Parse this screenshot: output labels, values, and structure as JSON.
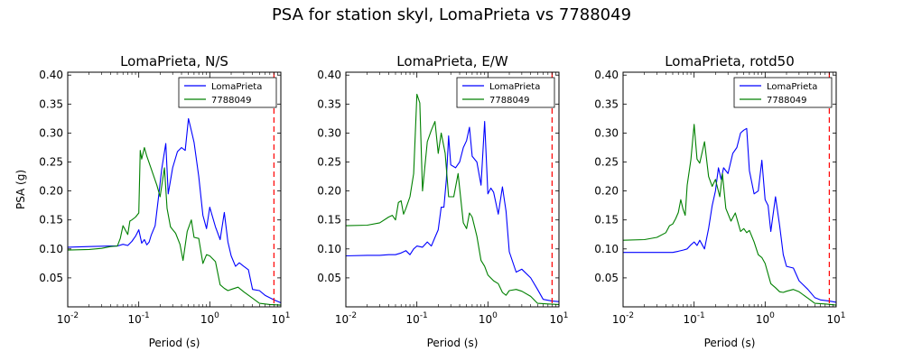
{
  "figure": {
    "suptitle": "PSA for station skyl, LomaPrieta vs 7788049"
  },
  "chart_data": [
    {
      "type": "line",
      "title": "LomaPrieta, N/S",
      "xlabel": "Period (s)",
      "ylabel": "PSA (g)",
      "xscale": "log",
      "xlim": [
        0.01,
        10
      ],
      "ylim": [
        0.0,
        0.405
      ],
      "xticks": [
        {
          "value": 0.01,
          "base": "10",
          "exp": "-2"
        },
        {
          "value": 0.1,
          "base": "10",
          "exp": "-1"
        },
        {
          "value": 1,
          "base": "10",
          "exp": "0"
        },
        {
          "value": 10,
          "base": "10",
          "exp": "1"
        }
      ],
      "yticks": [
        0.05,
        0.1,
        0.15,
        0.2,
        0.25,
        0.3,
        0.35,
        0.4
      ],
      "ytick_labels": [
        "0.05",
        "0.10",
        "0.15",
        "0.20",
        "0.25",
        "0.30",
        "0.35",
        "0.40"
      ],
      "legend_position": "top-right",
      "vline": {
        "x": 8,
        "color": "#ff0000",
        "style": "dashed"
      },
      "series": [
        {
          "name": "LomaPrieta",
          "color": "#0000ff",
          "x": [
            0.01,
            0.02,
            0.04,
            0.05,
            0.06,
            0.07,
            0.08,
            0.09,
            0.1,
            0.11,
            0.12,
            0.13,
            0.14,
            0.15,
            0.17,
            0.19,
            0.21,
            0.24,
            0.26,
            0.3,
            0.35,
            0.4,
            0.45,
            0.5,
            0.55,
            0.6,
            0.7,
            0.8,
            0.9,
            1.0,
            1.2,
            1.4,
            1.6,
            1.8,
            2.0,
            2.3,
            2.6,
            3.0,
            3.5,
            4.0,
            5.0,
            6.0,
            8.0,
            10.0
          ],
          "y": [
            0.103,
            0.104,
            0.105,
            0.105,
            0.108,
            0.106,
            0.113,
            0.122,
            0.133,
            0.11,
            0.116,
            0.107,
            0.112,
            0.124,
            0.14,
            0.19,
            0.237,
            0.282,
            0.195,
            0.24,
            0.268,
            0.275,
            0.27,
            0.325,
            0.304,
            0.284,
            0.225,
            0.158,
            0.135,
            0.172,
            0.138,
            0.116,
            0.163,
            0.112,
            0.088,
            0.07,
            0.076,
            0.07,
            0.064,
            0.03,
            0.028,
            0.02,
            0.012,
            0.007
          ]
        },
        {
          "name": "7788049",
          "color": "#008000",
          "x": [
            0.01,
            0.02,
            0.03,
            0.04,
            0.05,
            0.055,
            0.06,
            0.07,
            0.075,
            0.08,
            0.09,
            0.1,
            0.105,
            0.11,
            0.12,
            0.13,
            0.15,
            0.18,
            0.2,
            0.23,
            0.25,
            0.28,
            0.33,
            0.38,
            0.42,
            0.48,
            0.55,
            0.6,
            0.7,
            0.8,
            0.9,
            1.0,
            1.2,
            1.4,
            1.6,
            1.8,
            2.0,
            2.5,
            3.0,
            4.0,
            5.0,
            7.0,
            10.0
          ],
          "y": [
            0.098,
            0.099,
            0.101,
            0.104,
            0.105,
            0.118,
            0.14,
            0.125,
            0.148,
            0.15,
            0.155,
            0.162,
            0.27,
            0.255,
            0.275,
            0.26,
            0.238,
            0.21,
            0.19,
            0.24,
            0.17,
            0.138,
            0.127,
            0.108,
            0.08,
            0.13,
            0.15,
            0.12,
            0.118,
            0.075,
            0.09,
            0.088,
            0.078,
            0.038,
            0.032,
            0.028,
            0.03,
            0.034,
            0.026,
            0.015,
            0.006,
            0.004,
            0.003
          ]
        }
      ]
    },
    {
      "type": "line",
      "title": "LomaPrieta, E/W",
      "xlabel": "Period (s)",
      "ylabel": "",
      "xscale": "log",
      "xlim": [
        0.01,
        10
      ],
      "ylim": [
        0.0,
        0.405
      ],
      "xticks": [
        {
          "value": 0.01,
          "base": "10",
          "exp": "-2"
        },
        {
          "value": 0.1,
          "base": "10",
          "exp": "-1"
        },
        {
          "value": 1,
          "base": "10",
          "exp": "0"
        },
        {
          "value": 10,
          "base": "10",
          "exp": "1"
        }
      ],
      "yticks": [
        0.05,
        0.1,
        0.15,
        0.2,
        0.25,
        0.3,
        0.35,
        0.4
      ],
      "ytick_labels": [
        "0.05",
        "0.10",
        "0.15",
        "0.20",
        "0.25",
        "0.30",
        "0.35",
        "0.40"
      ],
      "legend_position": "top-right",
      "vline": {
        "x": 8,
        "color": "#ff0000",
        "style": "dashed"
      },
      "series": [
        {
          "name": "LomaPrieta",
          "color": "#0000ff",
          "x": [
            0.01,
            0.02,
            0.03,
            0.04,
            0.05,
            0.06,
            0.07,
            0.08,
            0.09,
            0.1,
            0.12,
            0.14,
            0.16,
            0.18,
            0.2,
            0.22,
            0.24,
            0.26,
            0.28,
            0.3,
            0.35,
            0.4,
            0.45,
            0.5,
            0.55,
            0.6,
            0.7,
            0.8,
            0.9,
            1.0,
            1.1,
            1.2,
            1.4,
            1.6,
            1.8,
            2.0,
            2.5,
            3.0,
            4.0,
            5.0,
            6.0,
            8.0,
            10.0
          ],
          "y": [
            0.088,
            0.089,
            0.089,
            0.09,
            0.09,
            0.093,
            0.097,
            0.09,
            0.1,
            0.105,
            0.103,
            0.112,
            0.105,
            0.12,
            0.133,
            0.172,
            0.172,
            0.22,
            0.295,
            0.245,
            0.24,
            0.25,
            0.275,
            0.287,
            0.31,
            0.26,
            0.25,
            0.21,
            0.32,
            0.195,
            0.205,
            0.198,
            0.16,
            0.207,
            0.165,
            0.095,
            0.06,
            0.065,
            0.05,
            0.03,
            0.013,
            0.01,
            0.009
          ]
        },
        {
          "name": "7788049",
          "color": "#008000",
          "x": [
            0.01,
            0.02,
            0.03,
            0.04,
            0.045,
            0.05,
            0.055,
            0.06,
            0.065,
            0.07,
            0.08,
            0.09,
            0.1,
            0.11,
            0.12,
            0.14,
            0.16,
            0.18,
            0.2,
            0.22,
            0.25,
            0.28,
            0.33,
            0.38,
            0.45,
            0.5,
            0.55,
            0.6,
            0.7,
            0.8,
            0.9,
            1.0,
            1.2,
            1.4,
            1.6,
            1.8,
            2.0,
            2.5,
            3.0,
            4.0,
            5.0,
            7.0,
            10.0
          ],
          "y": [
            0.14,
            0.141,
            0.145,
            0.155,
            0.158,
            0.15,
            0.18,
            0.183,
            0.16,
            0.17,
            0.19,
            0.23,
            0.367,
            0.352,
            0.2,
            0.285,
            0.305,
            0.32,
            0.265,
            0.3,
            0.265,
            0.19,
            0.19,
            0.23,
            0.145,
            0.135,
            0.162,
            0.155,
            0.122,
            0.08,
            0.07,
            0.055,
            0.045,
            0.04,
            0.025,
            0.02,
            0.028,
            0.03,
            0.027,
            0.018,
            0.006,
            0.005,
            0.004
          ]
        }
      ]
    },
    {
      "type": "line",
      "title": "LomaPrieta, rotd50",
      "xlabel": "Period (s)",
      "ylabel": "",
      "xscale": "log",
      "xlim": [
        0.01,
        10
      ],
      "ylim": [
        0.0,
        0.405
      ],
      "xticks": [
        {
          "value": 0.01,
          "base": "10",
          "exp": "-2"
        },
        {
          "value": 0.1,
          "base": "10",
          "exp": "-1"
        },
        {
          "value": 1,
          "base": "10",
          "exp": "0"
        },
        {
          "value": 10,
          "base": "10",
          "exp": "1"
        }
      ],
      "yticks": [
        0.05,
        0.1,
        0.15,
        0.2,
        0.25,
        0.3,
        0.35,
        0.4
      ],
      "ytick_labels": [
        "0.05",
        "0.10",
        "0.15",
        "0.20",
        "0.25",
        "0.30",
        "0.35",
        "0.40"
      ],
      "legend_position": "top-right",
      "vline": {
        "x": 8,
        "color": "#ff0000",
        "style": "dashed"
      },
      "series": [
        {
          "name": "LomaPrieta",
          "color": "#0000ff",
          "x": [
            0.01,
            0.02,
            0.03,
            0.04,
            0.05,
            0.06,
            0.07,
            0.08,
            0.09,
            0.1,
            0.11,
            0.12,
            0.14,
            0.16,
            0.18,
            0.2,
            0.22,
            0.24,
            0.26,
            0.28,
            0.3,
            0.35,
            0.4,
            0.45,
            0.5,
            0.55,
            0.6,
            0.7,
            0.8,
            0.9,
            1.0,
            1.1,
            1.2,
            1.4,
            1.6,
            1.8,
            2.0,
            2.5,
            3.0,
            4.0,
            5.0,
            6.0,
            8.0,
            10.0
          ],
          "y": [
            0.094,
            0.094,
            0.094,
            0.094,
            0.094,
            0.096,
            0.098,
            0.1,
            0.107,
            0.112,
            0.106,
            0.115,
            0.1,
            0.135,
            0.175,
            0.2,
            0.24,
            0.22,
            0.24,
            0.235,
            0.23,
            0.265,
            0.275,
            0.3,
            0.305,
            0.308,
            0.235,
            0.195,
            0.2,
            0.253,
            0.185,
            0.175,
            0.13,
            0.19,
            0.14,
            0.09,
            0.07,
            0.067,
            0.045,
            0.03,
            0.016,
            0.012,
            0.01,
            0.008
          ]
        },
        {
          "name": "7788049",
          "color": "#008000",
          "x": [
            0.01,
            0.02,
            0.03,
            0.04,
            0.045,
            0.05,
            0.055,
            0.06,
            0.065,
            0.07,
            0.075,
            0.08,
            0.09,
            0.1,
            0.11,
            0.12,
            0.14,
            0.16,
            0.18,
            0.2,
            0.23,
            0.25,
            0.28,
            0.33,
            0.38,
            0.45,
            0.5,
            0.55,
            0.6,
            0.7,
            0.8,
            0.9,
            1.0,
            1.2,
            1.4,
            1.6,
            1.8,
            2.0,
            2.5,
            3.0,
            4.0,
            5.0,
            7.0,
            10.0
          ],
          "y": [
            0.115,
            0.116,
            0.12,
            0.128,
            0.14,
            0.143,
            0.152,
            0.163,
            0.185,
            0.168,
            0.158,
            0.21,
            0.254,
            0.315,
            0.255,
            0.248,
            0.285,
            0.225,
            0.208,
            0.22,
            0.19,
            0.23,
            0.17,
            0.148,
            0.162,
            0.13,
            0.135,
            0.128,
            0.132,
            0.112,
            0.09,
            0.085,
            0.075,
            0.04,
            0.033,
            0.026,
            0.025,
            0.027,
            0.03,
            0.026,
            0.015,
            0.006,
            0.005,
            0.003
          ]
        }
      ]
    }
  ]
}
